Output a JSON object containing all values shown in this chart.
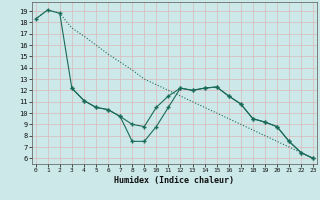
{
  "xlabel": "Humidex (Indice chaleur)",
  "bg_color": "#cce8e8",
  "grid_color": "#dbb8b8",
  "line_color": "#1a6b5a",
  "x_ticks": [
    0,
    1,
    2,
    3,
    4,
    5,
    6,
    7,
    8,
    9,
    10,
    11,
    12,
    13,
    14,
    15,
    16,
    17,
    18,
    19,
    20,
    21,
    22,
    23
  ],
  "y_ticks": [
    6,
    7,
    8,
    9,
    10,
    11,
    12,
    13,
    14,
    15,
    16,
    17,
    18,
    19
  ],
  "ylim": [
    5.5,
    19.8
  ],
  "xlim": [
    -0.3,
    23.3
  ],
  "line1_x": [
    0,
    1,
    2,
    3,
    4,
    5,
    6,
    7,
    8,
    9,
    10,
    11,
    12,
    13,
    14,
    15,
    16,
    17,
    18,
    19,
    20,
    21,
    22,
    23
  ],
  "line1_y": [
    18.3,
    19.1,
    18.8,
    17.5,
    16.8,
    16.0,
    15.2,
    14.5,
    13.8,
    13.0,
    12.5,
    12.0,
    11.5,
    11.0,
    10.5,
    10.0,
    9.5,
    9.0,
    8.5,
    8.0,
    7.5,
    7.0,
    6.5,
    6.0
  ],
  "line2_x": [
    0,
    1,
    2,
    3,
    4,
    5,
    6,
    7,
    8,
    9,
    10,
    11,
    12,
    13,
    14,
    15,
    16,
    17,
    18,
    19,
    20,
    21,
    22,
    23
  ],
  "line2_y": [
    18.3,
    19.1,
    18.8,
    12.2,
    11.1,
    10.5,
    10.3,
    9.7,
    9.0,
    8.8,
    10.5,
    11.5,
    12.2,
    12.0,
    12.2,
    12.3,
    11.5,
    10.8,
    9.5,
    9.2,
    8.8,
    7.5,
    6.5,
    6.0
  ],
  "line3_x": [
    3,
    4,
    5,
    6,
    7,
    8,
    9,
    10,
    11,
    12,
    13,
    14,
    15,
    16,
    17,
    18,
    19,
    20,
    21,
    22,
    23
  ],
  "line3_y": [
    12.2,
    11.1,
    10.5,
    10.3,
    9.7,
    7.5,
    7.5,
    8.8,
    10.5,
    12.2,
    12.0,
    12.2,
    12.3,
    11.5,
    10.8,
    9.5,
    9.2,
    8.8,
    7.5,
    6.5,
    6.0
  ]
}
